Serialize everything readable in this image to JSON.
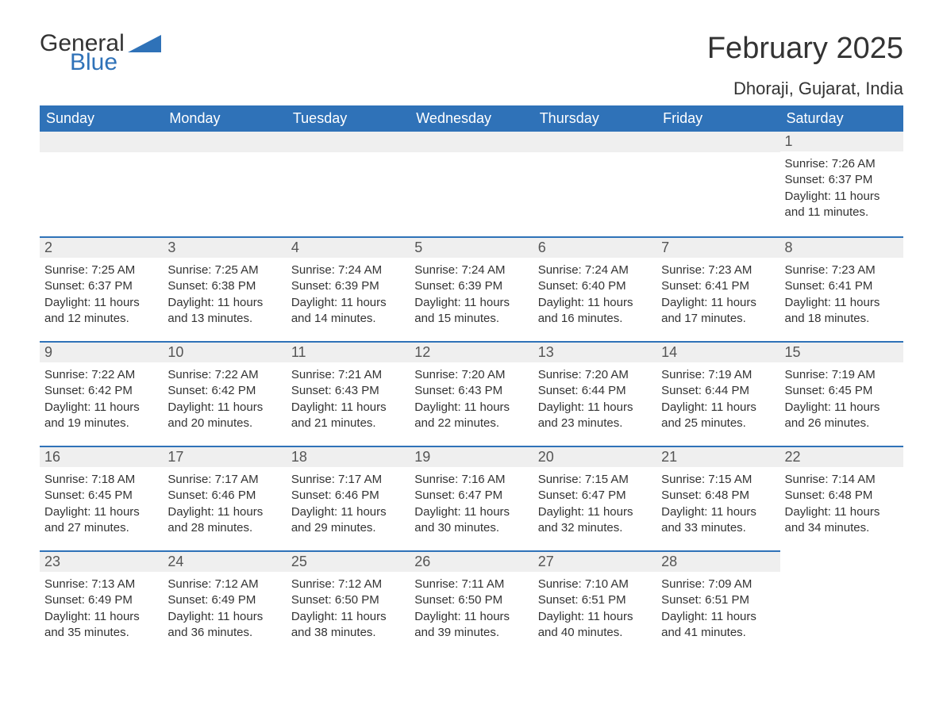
{
  "logo": {
    "word1": "General",
    "word2": "Blue",
    "icon_color": "#2f72b8"
  },
  "header": {
    "month_title": "February 2025",
    "location": "Dhoraji, Gujarat, India"
  },
  "colors": {
    "header_bg": "#2f72b8",
    "header_text": "#ffffff",
    "daynum_bg": "#efefef",
    "row_border": "#2f72b8",
    "body_text": "#333333"
  },
  "weekdays": [
    "Sunday",
    "Monday",
    "Tuesday",
    "Wednesday",
    "Thursday",
    "Friday",
    "Saturday"
  ],
  "weeks": [
    [
      null,
      null,
      null,
      null,
      null,
      null,
      {
        "n": "1",
        "sunrise": "Sunrise: 7:26 AM",
        "sunset": "Sunset: 6:37 PM",
        "daylight": "Daylight: 11 hours and 11 minutes."
      }
    ],
    [
      {
        "n": "2",
        "sunrise": "Sunrise: 7:25 AM",
        "sunset": "Sunset: 6:37 PM",
        "daylight": "Daylight: 11 hours and 12 minutes."
      },
      {
        "n": "3",
        "sunrise": "Sunrise: 7:25 AM",
        "sunset": "Sunset: 6:38 PM",
        "daylight": "Daylight: 11 hours and 13 minutes."
      },
      {
        "n": "4",
        "sunrise": "Sunrise: 7:24 AM",
        "sunset": "Sunset: 6:39 PM",
        "daylight": "Daylight: 11 hours and 14 minutes."
      },
      {
        "n": "5",
        "sunrise": "Sunrise: 7:24 AM",
        "sunset": "Sunset: 6:39 PM",
        "daylight": "Daylight: 11 hours and 15 minutes."
      },
      {
        "n": "6",
        "sunrise": "Sunrise: 7:24 AM",
        "sunset": "Sunset: 6:40 PM",
        "daylight": "Daylight: 11 hours and 16 minutes."
      },
      {
        "n": "7",
        "sunrise": "Sunrise: 7:23 AM",
        "sunset": "Sunset: 6:41 PM",
        "daylight": "Daylight: 11 hours and 17 minutes."
      },
      {
        "n": "8",
        "sunrise": "Sunrise: 7:23 AM",
        "sunset": "Sunset: 6:41 PM",
        "daylight": "Daylight: 11 hours and 18 minutes."
      }
    ],
    [
      {
        "n": "9",
        "sunrise": "Sunrise: 7:22 AM",
        "sunset": "Sunset: 6:42 PM",
        "daylight": "Daylight: 11 hours and 19 minutes."
      },
      {
        "n": "10",
        "sunrise": "Sunrise: 7:22 AM",
        "sunset": "Sunset: 6:42 PM",
        "daylight": "Daylight: 11 hours and 20 minutes."
      },
      {
        "n": "11",
        "sunrise": "Sunrise: 7:21 AM",
        "sunset": "Sunset: 6:43 PM",
        "daylight": "Daylight: 11 hours and 21 minutes."
      },
      {
        "n": "12",
        "sunrise": "Sunrise: 7:20 AM",
        "sunset": "Sunset: 6:43 PM",
        "daylight": "Daylight: 11 hours and 22 minutes."
      },
      {
        "n": "13",
        "sunrise": "Sunrise: 7:20 AM",
        "sunset": "Sunset: 6:44 PM",
        "daylight": "Daylight: 11 hours and 23 minutes."
      },
      {
        "n": "14",
        "sunrise": "Sunrise: 7:19 AM",
        "sunset": "Sunset: 6:44 PM",
        "daylight": "Daylight: 11 hours and 25 minutes."
      },
      {
        "n": "15",
        "sunrise": "Sunrise: 7:19 AM",
        "sunset": "Sunset: 6:45 PM",
        "daylight": "Daylight: 11 hours and 26 minutes."
      }
    ],
    [
      {
        "n": "16",
        "sunrise": "Sunrise: 7:18 AM",
        "sunset": "Sunset: 6:45 PM",
        "daylight": "Daylight: 11 hours and 27 minutes."
      },
      {
        "n": "17",
        "sunrise": "Sunrise: 7:17 AM",
        "sunset": "Sunset: 6:46 PM",
        "daylight": "Daylight: 11 hours and 28 minutes."
      },
      {
        "n": "18",
        "sunrise": "Sunrise: 7:17 AM",
        "sunset": "Sunset: 6:46 PM",
        "daylight": "Daylight: 11 hours and 29 minutes."
      },
      {
        "n": "19",
        "sunrise": "Sunrise: 7:16 AM",
        "sunset": "Sunset: 6:47 PM",
        "daylight": "Daylight: 11 hours and 30 minutes."
      },
      {
        "n": "20",
        "sunrise": "Sunrise: 7:15 AM",
        "sunset": "Sunset: 6:47 PM",
        "daylight": "Daylight: 11 hours and 32 minutes."
      },
      {
        "n": "21",
        "sunrise": "Sunrise: 7:15 AM",
        "sunset": "Sunset: 6:48 PM",
        "daylight": "Daylight: 11 hours and 33 minutes."
      },
      {
        "n": "22",
        "sunrise": "Sunrise: 7:14 AM",
        "sunset": "Sunset: 6:48 PM",
        "daylight": "Daylight: 11 hours and 34 minutes."
      }
    ],
    [
      {
        "n": "23",
        "sunrise": "Sunrise: 7:13 AM",
        "sunset": "Sunset: 6:49 PM",
        "daylight": "Daylight: 11 hours and 35 minutes."
      },
      {
        "n": "24",
        "sunrise": "Sunrise: 7:12 AM",
        "sunset": "Sunset: 6:49 PM",
        "daylight": "Daylight: 11 hours and 36 minutes."
      },
      {
        "n": "25",
        "sunrise": "Sunrise: 7:12 AM",
        "sunset": "Sunset: 6:50 PM",
        "daylight": "Daylight: 11 hours and 38 minutes."
      },
      {
        "n": "26",
        "sunrise": "Sunrise: 7:11 AM",
        "sunset": "Sunset: 6:50 PM",
        "daylight": "Daylight: 11 hours and 39 minutes."
      },
      {
        "n": "27",
        "sunrise": "Sunrise: 7:10 AM",
        "sunset": "Sunset: 6:51 PM",
        "daylight": "Daylight: 11 hours and 40 minutes."
      },
      {
        "n": "28",
        "sunrise": "Sunrise: 7:09 AM",
        "sunset": "Sunset: 6:51 PM",
        "daylight": "Daylight: 11 hours and 41 minutes."
      },
      null
    ]
  ]
}
